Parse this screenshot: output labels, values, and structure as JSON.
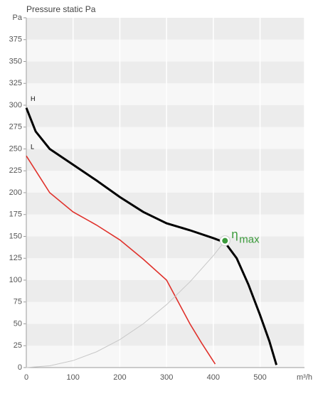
{
  "chart_data": {
    "type": "line",
    "title": "Pressure static Pa",
    "xlim": [
      0,
      595
    ],
    "xticks": [
      0,
      100,
      200,
      300,
      400,
      500,
      {
        "value": 595,
        "label": "m³/h"
      }
    ],
    "ylim": [
      0,
      400
    ],
    "yticks": [
      0,
      25,
      50,
      75,
      100,
      125,
      150,
      175,
      200,
      225,
      250,
      275,
      300,
      325,
      350,
      375,
      {
        "value": 400,
        "label": "Pa"
      }
    ],
    "grid": true,
    "series": [
      {
        "name": "H",
        "color": "#000000",
        "x": [
          0,
          20,
          50,
          100,
          150,
          200,
          250,
          300,
          350,
          400,
          425,
          450,
          475,
          500,
          520,
          535
        ],
        "values": [
          297,
          270,
          250,
          232,
          214,
          195,
          178,
          165,
          157,
          148,
          143,
          125,
          95,
          60,
          30,
          3
        ]
      },
      {
        "name": "L",
        "color": "#e0312b",
        "x": [
          0,
          50,
          100,
          150,
          200,
          250,
          300,
          350,
          375,
          404
        ],
        "values": [
          242,
          200,
          178,
          163,
          146,
          124,
          100,
          50,
          28,
          4
        ]
      },
      {
        "name": "efficiency",
        "color": "#c8c8c8",
        "x": [
          0,
          50,
          100,
          150,
          200,
          250,
          300,
          350,
          400,
          425
        ],
        "values": [
          0,
          2,
          8,
          18,
          32,
          50,
          72,
          98,
          128,
          145
        ]
      }
    ],
    "marker": {
      "x": 425,
      "y": 145,
      "color": "#3a9a3a",
      "label": "η",
      "sub": "max"
    }
  }
}
